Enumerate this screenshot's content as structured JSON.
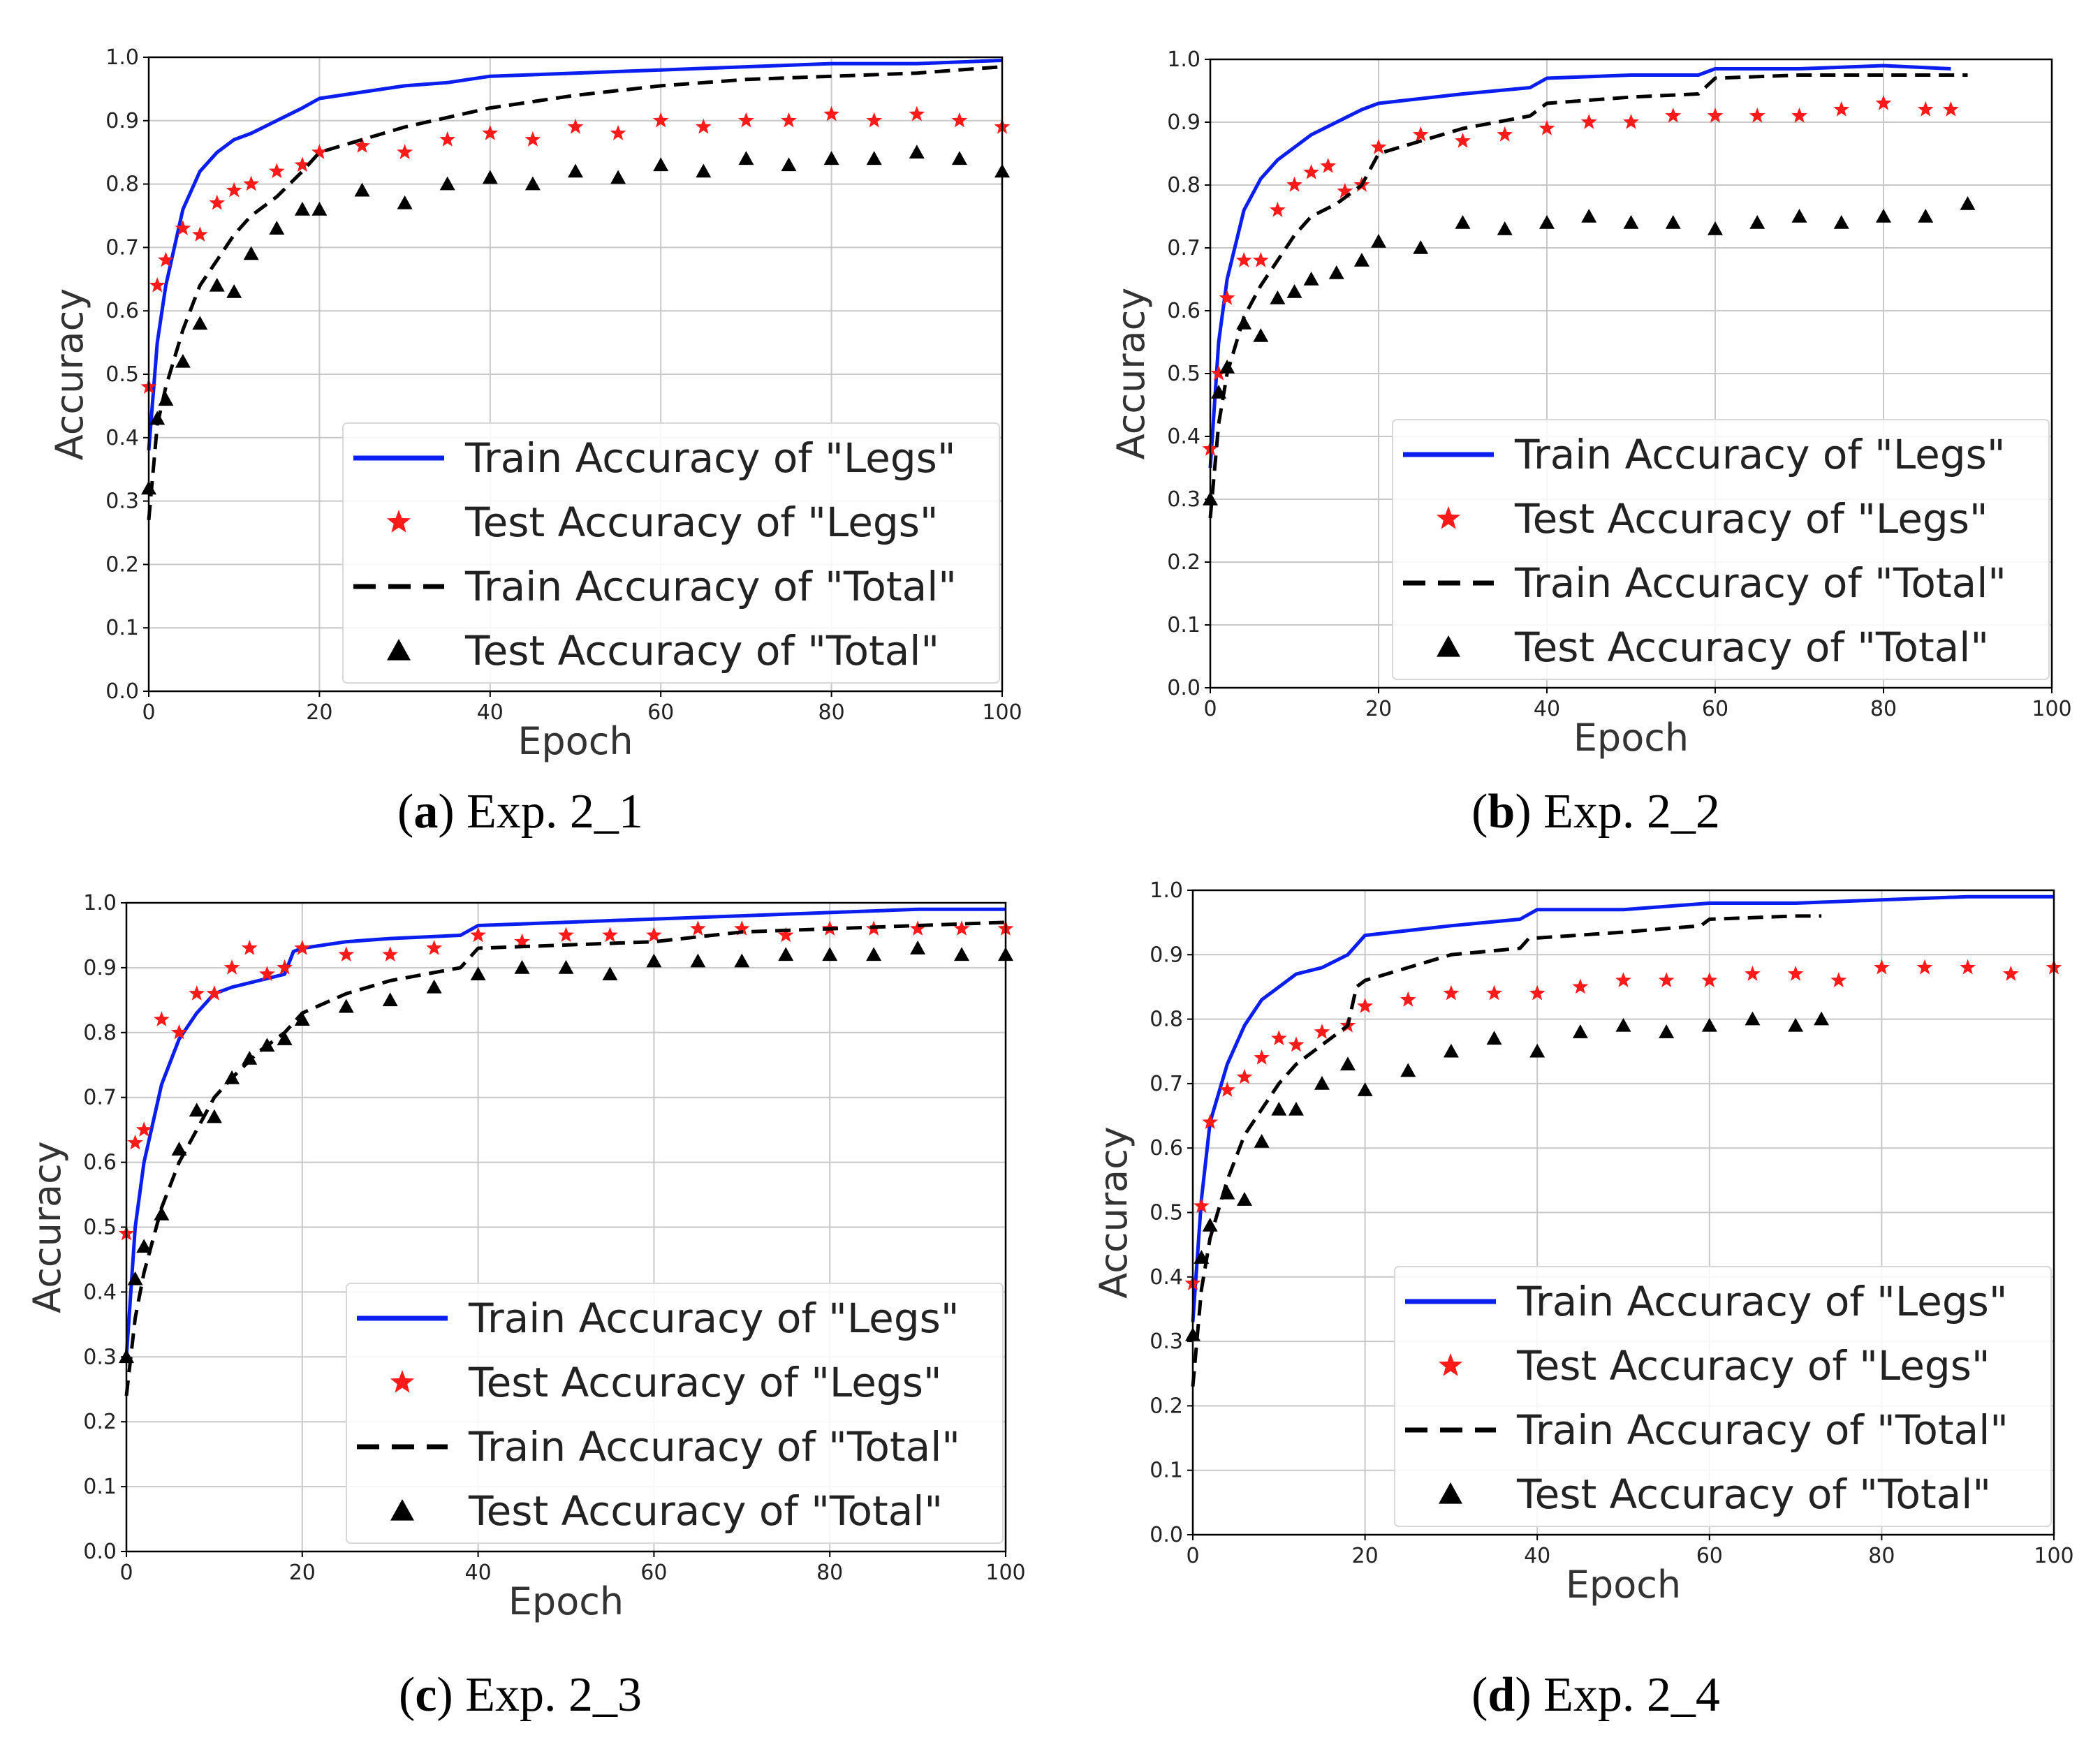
{
  "figure": {
    "captions": [
      {
        "letter": "a",
        "rest": "Exp. 2_1"
      },
      {
        "letter": "b",
        "rest": "Exp. 2_2"
      },
      {
        "letter": "c",
        "rest": "Exp. 2_3"
      },
      {
        "letter": "d",
        "rest": "Exp. 2_4"
      }
    ]
  },
  "colors": {
    "train_legs": "#0a1ef0",
    "test_legs": "#ff1a1a",
    "train_total": "#000000",
    "test_total": "#000000",
    "grid": "#c8c8c8"
  },
  "chart_data": [
    {
      "id": "a",
      "type": "line",
      "title": "",
      "xlabel": "Epoch",
      "ylabel": "Accuracy",
      "xlim": [
        0,
        100
      ],
      "ylim": [
        0.0,
        1.0
      ],
      "xticks": [
        "0",
        "20",
        "40",
        "60",
        "80",
        "100"
      ],
      "yticks": [
        "0.0",
        "0.1",
        "0.2",
        "0.3",
        "0.4",
        "0.5",
        "0.6",
        "0.7",
        "0.8",
        "0.9",
        "1.0"
      ],
      "grid": true,
      "legend_position": "lower-right",
      "series": [
        {
          "name": "Train Accuracy of \"Legs\"",
          "style": "line",
          "x": [
            0,
            1,
            2,
            4,
            6,
            8,
            10,
            12,
            15,
            18,
            20,
            25,
            30,
            35,
            40,
            50,
            60,
            70,
            80,
            90,
            100
          ],
          "values": [
            0.38,
            0.55,
            0.64,
            0.76,
            0.82,
            0.85,
            0.87,
            0.88,
            0.9,
            0.92,
            0.935,
            0.945,
            0.955,
            0.96,
            0.97,
            0.975,
            0.98,
            0.985,
            0.99,
            0.99,
            0.995
          ]
        },
        {
          "name": "Test Accuracy of \"Legs\"",
          "style": "star",
          "x": [
            0,
            1,
            2,
            4,
            6,
            8,
            10,
            12,
            15,
            18,
            20,
            25,
            30,
            35,
            40,
            45,
            50,
            55,
            60,
            65,
            70,
            75,
            80,
            85,
            90,
            95,
            100
          ],
          "values": [
            0.48,
            0.64,
            0.68,
            0.73,
            0.72,
            0.77,
            0.79,
            0.8,
            0.82,
            0.83,
            0.85,
            0.86,
            0.85,
            0.87,
            0.88,
            0.87,
            0.89,
            0.88,
            0.9,
            0.89,
            0.9,
            0.9,
            0.91,
            0.9,
            0.91,
            0.9,
            0.89
          ]
        },
        {
          "name": "Train Accuracy of \"Total\"",
          "style": "dashed",
          "x": [
            0,
            1,
            2,
            4,
            6,
            8,
            10,
            12,
            15,
            18,
            20,
            25,
            30,
            40,
            50,
            60,
            70,
            80,
            90,
            100
          ],
          "values": [
            0.27,
            0.42,
            0.48,
            0.57,
            0.64,
            0.68,
            0.72,
            0.75,
            0.78,
            0.82,
            0.85,
            0.87,
            0.89,
            0.92,
            0.94,
            0.955,
            0.965,
            0.97,
            0.975,
            0.985
          ]
        },
        {
          "name": "Test Accuracy of \"Total\"",
          "style": "triangle",
          "x": [
            0,
            1,
            2,
            4,
            6,
            8,
            10,
            12,
            15,
            18,
            20,
            25,
            30,
            35,
            40,
            45,
            50,
            55,
            60,
            65,
            70,
            75,
            80,
            85,
            90,
            95,
            100
          ],
          "values": [
            0.32,
            0.43,
            0.46,
            0.52,
            0.58,
            0.64,
            0.63,
            0.69,
            0.73,
            0.76,
            0.76,
            0.79,
            0.77,
            0.8,
            0.81,
            0.8,
            0.82,
            0.81,
            0.83,
            0.82,
            0.84,
            0.83,
            0.84,
            0.84,
            0.85,
            0.84,
            0.82
          ]
        }
      ]
    },
    {
      "id": "b",
      "type": "line",
      "title": "",
      "xlabel": "Epoch",
      "ylabel": "Accuracy",
      "xlim": [
        0,
        100
      ],
      "ylim": [
        0.0,
        1.0
      ],
      "xticks": [
        "0",
        "20",
        "40",
        "60",
        "80",
        "100"
      ],
      "yticks": [
        "0.0",
        "0.1",
        "0.2",
        "0.3",
        "0.4",
        "0.5",
        "0.6",
        "0.7",
        "0.8",
        "0.9",
        "1.0"
      ],
      "grid": true,
      "legend_position": "lower-right",
      "series": [
        {
          "name": "Train Accuracy of \"Legs\"",
          "style": "line",
          "x": [
            0,
            1,
            2,
            4,
            6,
            8,
            10,
            12,
            15,
            18,
            20,
            30,
            38,
            40,
            50,
            58,
            60,
            70,
            80,
            88
          ],
          "values": [
            0.35,
            0.55,
            0.65,
            0.76,
            0.81,
            0.84,
            0.86,
            0.88,
            0.9,
            0.92,
            0.93,
            0.945,
            0.955,
            0.97,
            0.975,
            0.975,
            0.985,
            0.985,
            0.99,
            0.985
          ]
        },
        {
          "name": "Test Accuracy of \"Legs\"",
          "style": "star",
          "x": [
            0,
            1,
            2,
            4,
            6,
            8,
            10,
            12,
            14,
            16,
            18,
            20,
            25,
            30,
            35,
            40,
            45,
            50,
            55,
            60,
            65,
            70,
            75,
            80,
            85,
            88
          ],
          "values": [
            0.38,
            0.5,
            0.62,
            0.68,
            0.68,
            0.76,
            0.8,
            0.82,
            0.83,
            0.79,
            0.8,
            0.86,
            0.88,
            0.87,
            0.88,
            0.89,
            0.9,
            0.9,
            0.91,
            0.91,
            0.91,
            0.91,
            0.92,
            0.93,
            0.92,
            0.92
          ]
        },
        {
          "name": "Train Accuracy of \"Total\"",
          "style": "dashed",
          "x": [
            0,
            1,
            2,
            4,
            6,
            8,
            10,
            12,
            15,
            18,
            20,
            25,
            30,
            38,
            40,
            50,
            58,
            60,
            70,
            80,
            90
          ],
          "values": [
            0.27,
            0.42,
            0.5,
            0.59,
            0.64,
            0.68,
            0.72,
            0.75,
            0.77,
            0.8,
            0.85,
            0.87,
            0.89,
            0.91,
            0.93,
            0.94,
            0.945,
            0.97,
            0.975,
            0.975,
            0.975
          ]
        },
        {
          "name": "Test Accuracy of \"Total\"",
          "style": "triangle",
          "x": [
            0,
            1,
            2,
            4,
            6,
            8,
            10,
            12,
            15,
            18,
            20,
            25,
            30,
            35,
            40,
            45,
            50,
            55,
            60,
            65,
            70,
            75,
            80,
            85,
            90
          ],
          "values": [
            0.3,
            0.47,
            0.51,
            0.58,
            0.56,
            0.62,
            0.63,
            0.65,
            0.66,
            0.68,
            0.71,
            0.7,
            0.74,
            0.73,
            0.74,
            0.75,
            0.74,
            0.74,
            0.73,
            0.74,
            0.75,
            0.74,
            0.75,
            0.75,
            0.77
          ]
        }
      ]
    },
    {
      "id": "c",
      "type": "line",
      "title": "",
      "xlabel": "Epoch",
      "ylabel": "Accuracy",
      "xlim": [
        0,
        100
      ],
      "ylim": [
        0.0,
        1.0
      ],
      "xticks": [
        "0",
        "20",
        "40",
        "60",
        "80",
        "100"
      ],
      "yticks": [
        "0.0",
        "0.1",
        "0.2",
        "0.3",
        "0.4",
        "0.5",
        "0.6",
        "0.7",
        "0.8",
        "0.9",
        "1.0"
      ],
      "grid": true,
      "legend_position": "lower-right",
      "series": [
        {
          "name": "Train Accuracy of \"Legs\"",
          "style": "line",
          "x": [
            0,
            1,
            2,
            4,
            6,
            8,
            10,
            12,
            15,
            18,
            19,
            20,
            25,
            30,
            38,
            40,
            50,
            60,
            70,
            80,
            90,
            100
          ],
          "values": [
            0.3,
            0.5,
            0.6,
            0.72,
            0.79,
            0.83,
            0.86,
            0.87,
            0.88,
            0.89,
            0.925,
            0.93,
            0.94,
            0.945,
            0.95,
            0.965,
            0.97,
            0.975,
            0.98,
            0.985,
            0.99,
            0.99
          ]
        },
        {
          "name": "Test Accuracy of \"Legs\"",
          "style": "star",
          "x": [
            0,
            1,
            2,
            4,
            6,
            8,
            10,
            12,
            14,
            16,
            18,
            20,
            25,
            30,
            35,
            40,
            45,
            50,
            55,
            60,
            65,
            70,
            75,
            80,
            85,
            90,
            95,
            100
          ],
          "values": [
            0.49,
            0.63,
            0.65,
            0.82,
            0.8,
            0.86,
            0.86,
            0.9,
            0.93,
            0.89,
            0.9,
            0.93,
            0.92,
            0.92,
            0.93,
            0.95,
            0.94,
            0.95,
            0.95,
            0.95,
            0.96,
            0.96,
            0.95,
            0.96,
            0.96,
            0.96,
            0.96,
            0.96
          ]
        },
        {
          "name": "Train Accuracy of \"Total\"",
          "style": "dashed",
          "x": [
            0,
            1,
            2,
            4,
            6,
            8,
            10,
            12,
            15,
            18,
            20,
            25,
            30,
            38,
            40,
            50,
            60,
            70,
            80,
            90,
            100
          ],
          "values": [
            0.24,
            0.36,
            0.43,
            0.53,
            0.6,
            0.65,
            0.7,
            0.73,
            0.77,
            0.8,
            0.83,
            0.86,
            0.88,
            0.9,
            0.93,
            0.935,
            0.94,
            0.955,
            0.96,
            0.965,
            0.97
          ]
        },
        {
          "name": "Test Accuracy of \"Total\"",
          "style": "triangle",
          "x": [
            0,
            1,
            2,
            4,
            6,
            8,
            10,
            12,
            14,
            16,
            18,
            20,
            25,
            30,
            35,
            40,
            45,
            50,
            55,
            60,
            65,
            70,
            75,
            80,
            85,
            90,
            95,
            100
          ],
          "values": [
            0.3,
            0.42,
            0.47,
            0.52,
            0.62,
            0.68,
            0.67,
            0.73,
            0.76,
            0.78,
            0.79,
            0.82,
            0.84,
            0.85,
            0.87,
            0.89,
            0.9,
            0.9,
            0.89,
            0.91,
            0.91,
            0.91,
            0.92,
            0.92,
            0.92,
            0.93,
            0.92,
            0.92
          ]
        }
      ]
    },
    {
      "id": "d",
      "type": "line",
      "title": "",
      "xlabel": "Epoch",
      "ylabel": "Accuracy",
      "xlim": [
        0,
        100
      ],
      "ylim": [
        0.0,
        1.0
      ],
      "xticks": [
        "0",
        "20",
        "40",
        "60",
        "80",
        "100"
      ],
      "yticks": [
        "0.0",
        "0.1",
        "0.2",
        "0.3",
        "0.4",
        "0.5",
        "0.6",
        "0.7",
        "0.8",
        "0.9",
        "1.0"
      ],
      "grid": true,
      "legend_position": "lower-right",
      "series": [
        {
          "name": "Train Accuracy of \"Legs\"",
          "style": "line",
          "x": [
            0,
            1,
            2,
            4,
            6,
            8,
            10,
            12,
            15,
            18,
            20,
            30,
            38,
            40,
            50,
            60,
            70,
            80,
            90,
            100
          ],
          "values": [
            0.33,
            0.52,
            0.64,
            0.73,
            0.79,
            0.83,
            0.85,
            0.87,
            0.88,
            0.9,
            0.93,
            0.945,
            0.955,
            0.97,
            0.97,
            0.98,
            0.98,
            0.985,
            0.99,
            0.99
          ]
        },
        {
          "name": "Test Accuracy of \"Legs\"",
          "style": "star",
          "x": [
            0,
            1,
            2,
            4,
            6,
            8,
            10,
            12,
            15,
            18,
            20,
            25,
            30,
            35,
            40,
            45,
            50,
            55,
            60,
            65,
            70,
            75,
            80,
            85,
            90,
            95,
            100
          ],
          "values": [
            0.39,
            0.51,
            0.64,
            0.69,
            0.71,
            0.74,
            0.77,
            0.76,
            0.78,
            0.79,
            0.82,
            0.83,
            0.84,
            0.84,
            0.84,
            0.85,
            0.86,
            0.86,
            0.86,
            0.87,
            0.87,
            0.86,
            0.88,
            0.88,
            0.88,
            0.87,
            0.88
          ]
        },
        {
          "name": "Train Accuracy of \"Total\"",
          "style": "dashed",
          "x": [
            0,
            1,
            2,
            4,
            6,
            8,
            10,
            12,
            15,
            18,
            19,
            20,
            30,
            38,
            39,
            50,
            59,
            60,
            70,
            73
          ],
          "values": [
            0.23,
            0.38,
            0.46,
            0.55,
            0.62,
            0.66,
            0.7,
            0.73,
            0.76,
            0.79,
            0.85,
            0.86,
            0.9,
            0.91,
            0.925,
            0.935,
            0.945,
            0.955,
            0.96,
            0.96
          ]
        },
        {
          "name": "Test Accuracy of \"Total\"",
          "style": "triangle",
          "x": [
            0,
            1,
            2,
            4,
            6,
            8,
            10,
            12,
            15,
            18,
            20,
            25,
            30,
            35,
            40,
            45,
            50,
            55,
            60,
            65,
            70,
            73
          ],
          "values": [
            0.31,
            0.43,
            0.48,
            0.53,
            0.52,
            0.61,
            0.66,
            0.66,
            0.7,
            0.73,
            0.69,
            0.72,
            0.75,
            0.77,
            0.75,
            0.78,
            0.79,
            0.78,
            0.79,
            0.8,
            0.79,
            0.8
          ]
        }
      ]
    }
  ]
}
